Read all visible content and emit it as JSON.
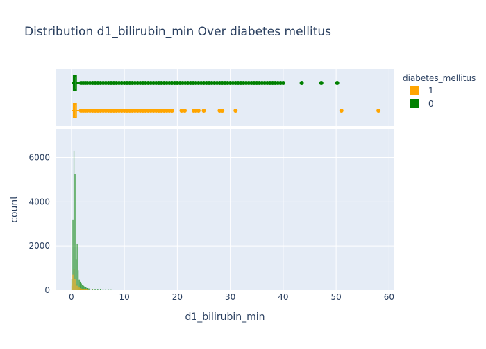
{
  "chart_data": {
    "type": "histogram",
    "title": "Distribution d1_bilirubin_min Over diabetes mellitus",
    "xlabel": "d1_bilirubin_min",
    "ylabel": "count",
    "x_range": [
      -3,
      61
    ],
    "y_range": [
      0,
      7300
    ],
    "x_ticks": [
      0,
      10,
      20,
      30,
      40,
      50,
      60
    ],
    "y_ticks": [
      0,
      2000,
      4000,
      6000
    ],
    "grid": true,
    "marginal": "box with outlier points (top)",
    "legend": {
      "title": "diabetes_mellitus",
      "placement": "top-right"
    },
    "series": [
      {
        "name": "1",
        "color": "#FFA500",
        "histogram": {
          "bin_width": 0.2,
          "x": [
            0.1,
            0.3,
            0.5,
            0.7,
            0.9,
            1.1,
            1.3,
            1.5,
            1.7,
            1.9,
            2.1,
            2.3,
            2.5,
            2.7,
            2.9,
            3.1,
            3.5,
            4.0
          ],
          "counts": [
            200,
            700,
            950,
            500,
            280,
            200,
            150,
            120,
            90,
            70,
            60,
            50,
            40,
            35,
            30,
            25,
            15,
            10
          ]
        },
        "box": {
          "min": 0.1,
          "q1": 0.4,
          "median": 0.6,
          "q3": 0.9,
          "upper_fence": 1.6,
          "outliers": [
            1.8,
            2.2,
            2.6,
            3.0,
            3.5,
            4.0,
            4.5,
            5.0,
            5.5,
            6.0,
            6.5,
            7.0,
            7.5,
            8.0,
            8.5,
            9.0,
            9.5,
            10.0,
            10.5,
            11.0,
            11.5,
            12.0,
            12.5,
            13.0,
            13.5,
            14.0,
            14.5,
            15.0,
            15.5,
            16.0,
            16.5,
            17.0,
            17.5,
            18.0,
            18.5,
            19.0,
            20.8,
            21.4,
            23.1,
            23.5,
            24.0,
            25.0,
            28.0,
            28.5,
            31.0,
            51.0,
            58.0
          ]
        }
      },
      {
        "name": "0",
        "color": "#008000",
        "histogram": {
          "bin_width": 0.2,
          "x": [
            0.1,
            0.3,
            0.5,
            0.7,
            0.9,
            1.1,
            1.3,
            1.5,
            1.7,
            1.9,
            2.1,
            2.3,
            2.5,
            2.7,
            2.9,
            3.1,
            3.3,
            3.5,
            4.0,
            4.5,
            5.0,
            5.5,
            6.0,
            6.5,
            7.0,
            7.5
          ],
          "counts": [
            500,
            3200,
            6300,
            5250,
            1400,
            2100,
            900,
            480,
            380,
            300,
            250,
            200,
            170,
            140,
            110,
            95,
            80,
            70,
            55,
            45,
            35,
            30,
            25,
            20,
            15,
            10
          ]
        },
        "box": {
          "min": 0.1,
          "q1": 0.4,
          "median": 0.6,
          "q3": 0.9,
          "upper_fence": 1.6,
          "outliers": [
            1.8,
            2.2,
            2.6,
            3.0,
            3.5,
            4.0,
            4.5,
            5.0,
            5.5,
            6.0,
            6.5,
            7.0,
            7.5,
            8.0,
            8.5,
            9.0,
            9.5,
            10.0,
            10.5,
            11.0,
            11.5,
            12.0,
            12.5,
            13.0,
            13.5,
            14.0,
            14.5,
            15.0,
            15.5,
            16.0,
            16.5,
            17.0,
            17.5,
            18.0,
            18.5,
            19.0,
            19.5,
            20.0,
            20.5,
            21.0,
            21.5,
            22.0,
            22.5,
            23.0,
            23.5,
            24.0,
            24.5,
            25.0,
            25.5,
            26.0,
            26.5,
            27.0,
            27.5,
            28.0,
            28.5,
            29.0,
            29.5,
            30.0,
            30.5,
            31.0,
            31.5,
            32.0,
            32.5,
            33.0,
            33.5,
            34.0,
            34.5,
            35.0,
            35.5,
            36.0,
            36.5,
            37.0,
            37.5,
            38.0,
            38.5,
            39.0,
            39.5,
            40.0,
            43.5,
            47.2,
            50.2
          ]
        }
      }
    ]
  }
}
